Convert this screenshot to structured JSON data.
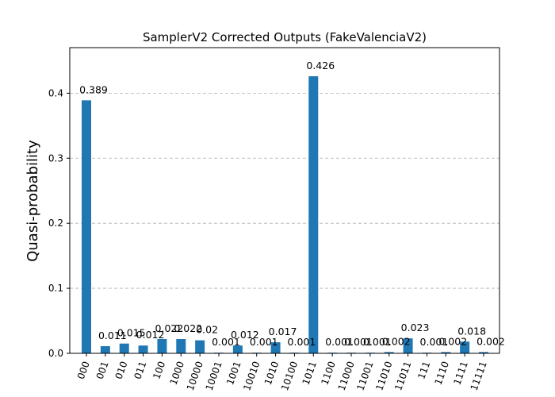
{
  "chart_data": {
    "type": "bar",
    "title": "SamplerV2 Corrected Outputs (FakeValenciaV2)",
    "xlabel": "",
    "ylabel": "Quasi-probability",
    "ylim": [
      0,
      0.47
    ],
    "yticks": [
      0.0,
      0.1,
      0.2,
      0.3,
      0.4
    ],
    "ytick_labels": [
      "0.0",
      "0.1",
      "0.2",
      "0.3",
      "0.4"
    ],
    "grid": "horizontal dashed",
    "bar_color": "#1f77b4",
    "categories": [
      "000",
      "001",
      "010",
      "011",
      "100",
      "1000",
      "10000",
      "10001",
      "1001",
      "10010",
      "1010",
      "10100",
      "1011",
      "1100",
      "11000",
      "11001",
      "11010",
      "11011",
      "111",
      "1110",
      "1111",
      "11111"
    ],
    "values": [
      0.389,
      0.011,
      0.015,
      0.012,
      0.022,
      0.022,
      0.02,
      0.001,
      0.012,
      0.001,
      0.017,
      0.001,
      0.426,
      0.001,
      0.001,
      0.001,
      0.002,
      0.023,
      0.001,
      0.002,
      0.018,
      0.002
    ],
    "value_labels": [
      "0.389",
      "0.011",
      "0.015",
      "0.012",
      "0.022",
      "0.022",
      "0.02",
      "0.001",
      "0.012",
      "0.001",
      "0.017",
      "0.001",
      "0.426",
      "0.001",
      "0.001",
      "0.001",
      "0.002",
      "0.023",
      "0.001",
      "0.002",
      "0.018",
      "0.002"
    ]
  }
}
